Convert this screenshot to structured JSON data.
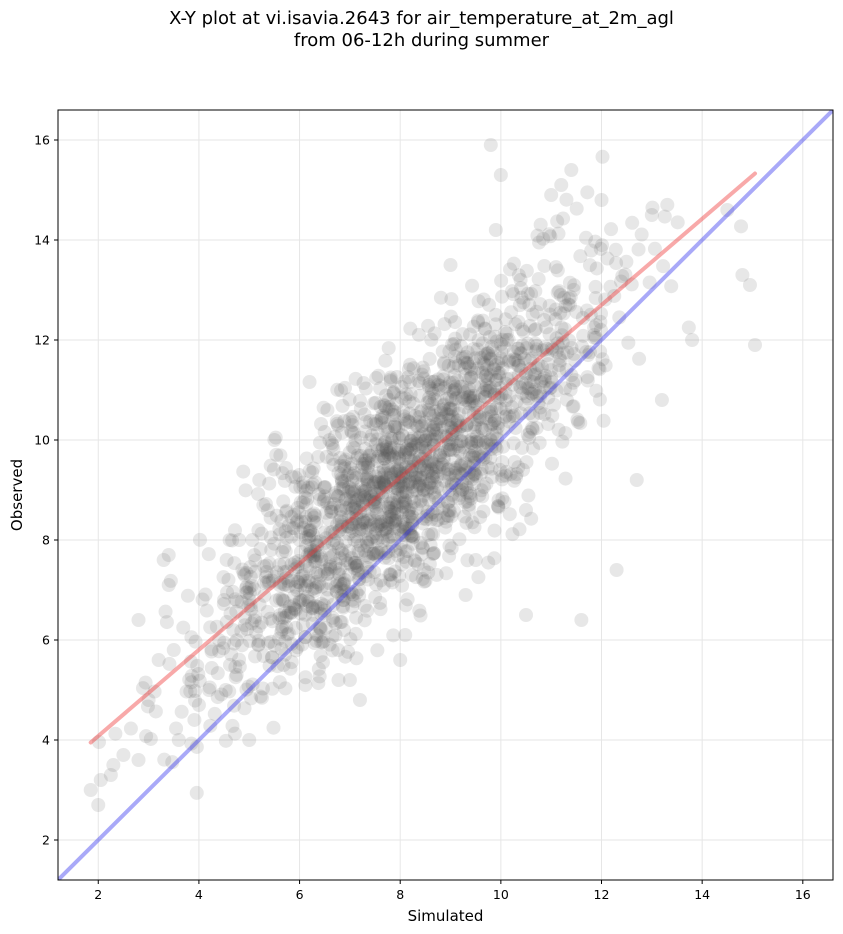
{
  "chart_data": {
    "type": "scatter",
    "title_line1": "X-Y plot at vi.isavia.2643 for air_temperature_at_2m_agl",
    "title_line2": "from 06-12h during summer",
    "xlabel": "Simulated",
    "ylabel": "Observed",
    "xlim": [
      1.2,
      16.6
    ],
    "ylim": [
      1.2,
      16.6
    ],
    "xticks": [
      2,
      4,
      6,
      8,
      10,
      12,
      14,
      16
    ],
    "yticks": [
      2,
      4,
      6,
      8,
      10,
      12,
      14,
      16
    ],
    "grid": true,
    "point_color": "#555555",
    "point_opacity": 0.14,
    "reference_line": {
      "x": [
        1.2,
        16.6
      ],
      "y": [
        1.2,
        16.6
      ],
      "color": "#3333ee"
    },
    "fit_line": {
      "x": [
        1.85,
        15.05
      ],
      "y": [
        3.95,
        15.33
      ],
      "color": "#ee3333"
    },
    "sample_points": {
      "x": [
        1.85,
        2.0,
        2.05,
        2.25,
        2.3,
        2.5,
        2.8,
        3.0,
        3.3,
        3.4,
        3.4,
        3.5,
        3.2,
        3.6,
        2.8,
        4.0,
        4.2,
        4.5,
        4.8,
        5.0,
        5.2,
        5.6,
        5.5,
        6.0,
        7.0,
        7.2,
        8.0,
        8.1,
        9.3,
        9.5,
        9.8,
        10.0,
        10.5,
        11.2,
        11.6,
        12.3,
        12.7,
        13.0,
        13.2,
        13.8,
        14.5,
        14.8,
        14.95,
        15.05,
        10.5,
        11.4,
        12.0,
        11.0,
        9.0,
        9.9
      ],
      "y": [
        3.0,
        2.7,
        3.2,
        3.3,
        3.5,
        3.7,
        3.6,
        4.8,
        7.6,
        7.7,
        7.1,
        5.8,
        5.6,
        4.0,
        6.4,
        4.7,
        5.0,
        6.8,
        8.0,
        4.0,
        9.2,
        7.5,
        10.0,
        8.0,
        5.2,
        4.8,
        5.6,
        6.1,
        6.9,
        7.6,
        15.9,
        15.3,
        6.5,
        15.1,
        6.4,
        7.4,
        9.2,
        14.5,
        10.8,
        12.0,
        14.6,
        13.3,
        13.1,
        11.9,
        8.6,
        15.4,
        14.8,
        14.9,
        13.5,
        14.2
      ]
    }
  }
}
